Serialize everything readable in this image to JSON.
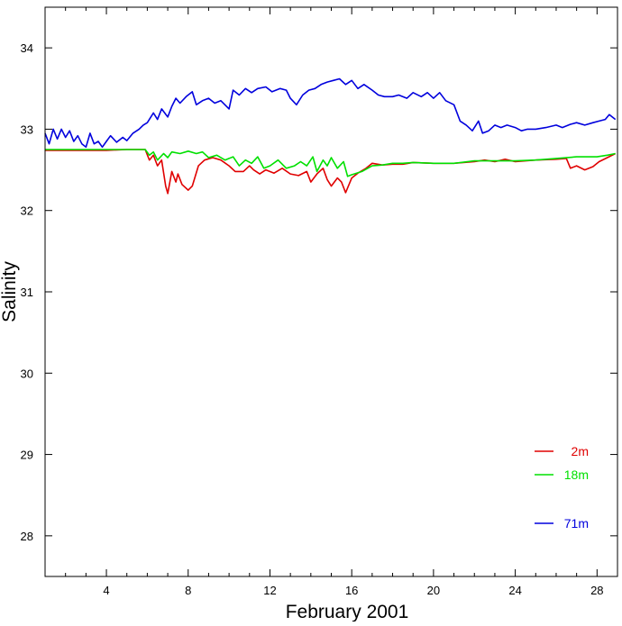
{
  "chart_data": {
    "type": "line",
    "title": "",
    "xlabel": "February 2001",
    "ylabel": "Salinity",
    "xlim": [
      1,
      29
    ],
    "ylim": [
      27.5,
      34.5
    ],
    "xticks": [
      4,
      8,
      12,
      16,
      20,
      24,
      28
    ],
    "xtick_labels": [
      "4",
      "8",
      "12",
      "16",
      "20",
      "24",
      "28"
    ],
    "x_minor_step": 1,
    "yticks": [
      28,
      29,
      30,
      31,
      32,
      33,
      34
    ],
    "ytick_labels": [
      "28",
      "29",
      "30",
      "31",
      "32",
      "33",
      "34"
    ],
    "grid": false,
    "legend_position": "bottom-right",
    "series": [
      {
        "name": "2m",
        "color": "#e00000",
        "points": [
          [
            1.0,
            32.74
          ],
          [
            2.0,
            32.74
          ],
          [
            3.0,
            32.74
          ],
          [
            4.0,
            32.74
          ],
          [
            5.0,
            32.75
          ],
          [
            5.9,
            32.75
          ],
          [
            6.1,
            32.62
          ],
          [
            6.3,
            32.68
          ],
          [
            6.5,
            32.55
          ],
          [
            6.7,
            32.62
          ],
          [
            6.9,
            32.3
          ],
          [
            7.0,
            32.21
          ],
          [
            7.2,
            32.48
          ],
          [
            7.4,
            32.35
          ],
          [
            7.5,
            32.45
          ],
          [
            7.7,
            32.32
          ],
          [
            8.0,
            32.25
          ],
          [
            8.2,
            32.3
          ],
          [
            8.5,
            32.55
          ],
          [
            8.8,
            32.62
          ],
          [
            9.2,
            32.65
          ],
          [
            9.6,
            32.62
          ],
          [
            10.0,
            32.55
          ],
          [
            10.3,
            32.48
          ],
          [
            10.7,
            32.48
          ],
          [
            11.0,
            32.55
          ],
          [
            11.2,
            32.5
          ],
          [
            11.5,
            32.45
          ],
          [
            11.8,
            32.5
          ],
          [
            12.2,
            32.46
          ],
          [
            12.6,
            32.52
          ],
          [
            13.0,
            32.45
          ],
          [
            13.4,
            32.43
          ],
          [
            13.8,
            32.48
          ],
          [
            14.0,
            32.35
          ],
          [
            14.3,
            32.45
          ],
          [
            14.6,
            32.52
          ],
          [
            14.8,
            32.38
          ],
          [
            15.0,
            32.3
          ],
          [
            15.3,
            32.4
          ],
          [
            15.5,
            32.35
          ],
          [
            15.7,
            32.22
          ],
          [
            16.0,
            32.4
          ],
          [
            16.3,
            32.46
          ],
          [
            16.7,
            32.52
          ],
          [
            17.0,
            32.58
          ],
          [
            17.5,
            32.56
          ],
          [
            18.0,
            32.57
          ],
          [
            18.5,
            32.57
          ],
          [
            19.0,
            32.59
          ],
          [
            20.0,
            32.58
          ],
          [
            21.0,
            32.58
          ],
          [
            22.0,
            32.6
          ],
          [
            22.5,
            32.62
          ],
          [
            23.0,
            32.6
          ],
          [
            23.5,
            32.63
          ],
          [
            24.0,
            32.6
          ],
          [
            25.0,
            32.62
          ],
          [
            26.0,
            32.63
          ],
          [
            26.5,
            32.64
          ],
          [
            26.7,
            32.52
          ],
          [
            27.0,
            32.55
          ],
          [
            27.4,
            32.5
          ],
          [
            27.8,
            32.54
          ],
          [
            28.1,
            32.6
          ],
          [
            28.5,
            32.65
          ],
          [
            28.9,
            32.7
          ]
        ]
      },
      {
        "name": "18m",
        "color": "#00e000",
        "points": [
          [
            1.0,
            32.75
          ],
          [
            2.0,
            32.75
          ],
          [
            3.0,
            32.75
          ],
          [
            4.0,
            32.75
          ],
          [
            5.0,
            32.75
          ],
          [
            5.9,
            32.75
          ],
          [
            6.1,
            32.68
          ],
          [
            6.3,
            32.72
          ],
          [
            6.5,
            32.62
          ],
          [
            6.8,
            32.7
          ],
          [
            7.0,
            32.65
          ],
          [
            7.2,
            32.72
          ],
          [
            7.6,
            32.7
          ],
          [
            8.0,
            32.73
          ],
          [
            8.4,
            32.7
          ],
          [
            8.7,
            32.72
          ],
          [
            9.0,
            32.65
          ],
          [
            9.4,
            32.68
          ],
          [
            9.8,
            32.62
          ],
          [
            10.2,
            32.66
          ],
          [
            10.5,
            32.55
          ],
          [
            10.8,
            32.62
          ],
          [
            11.1,
            32.58
          ],
          [
            11.4,
            32.66
          ],
          [
            11.7,
            32.52
          ],
          [
            12.0,
            32.55
          ],
          [
            12.4,
            32.62
          ],
          [
            12.8,
            32.52
          ],
          [
            13.2,
            32.55
          ],
          [
            13.5,
            32.6
          ],
          [
            13.8,
            32.55
          ],
          [
            14.1,
            32.66
          ],
          [
            14.3,
            32.48
          ],
          [
            14.6,
            32.62
          ],
          [
            14.8,
            32.55
          ],
          [
            15.0,
            32.65
          ],
          [
            15.3,
            32.52
          ],
          [
            15.6,
            32.6
          ],
          [
            15.8,
            32.42
          ],
          [
            16.0,
            32.44
          ],
          [
            16.5,
            32.48
          ],
          [
            17.0,
            32.55
          ],
          [
            17.5,
            32.56
          ],
          [
            18.0,
            32.58
          ],
          [
            18.5,
            32.58
          ],
          [
            19.0,
            32.59
          ],
          [
            20.0,
            32.58
          ],
          [
            21.0,
            32.58
          ],
          [
            22.0,
            32.61
          ],
          [
            23.0,
            32.61
          ],
          [
            24.0,
            32.61
          ],
          [
            25.0,
            32.62
          ],
          [
            26.0,
            32.64
          ],
          [
            27.0,
            32.66
          ],
          [
            27.5,
            32.66
          ],
          [
            28.0,
            32.66
          ],
          [
            28.5,
            32.68
          ],
          [
            28.9,
            32.7
          ]
        ]
      },
      {
        "name": "71m",
        "color": "#0000dd",
        "points": [
          [
            1.0,
            32.95
          ],
          [
            1.2,
            32.82
          ],
          [
            1.4,
            33.0
          ],
          [
            1.6,
            32.88
          ],
          [
            1.8,
            33.0
          ],
          [
            2.0,
            32.9
          ],
          [
            2.2,
            32.98
          ],
          [
            2.4,
            32.85
          ],
          [
            2.6,
            32.92
          ],
          [
            2.8,
            32.82
          ],
          [
            3.0,
            32.78
          ],
          [
            3.2,
            32.95
          ],
          [
            3.4,
            32.82
          ],
          [
            3.6,
            32.85
          ],
          [
            3.8,
            32.78
          ],
          [
            4.0,
            32.85
          ],
          [
            4.2,
            32.92
          ],
          [
            4.5,
            32.84
          ],
          [
            4.8,
            32.9
          ],
          [
            5.0,
            32.86
          ],
          [
            5.3,
            32.95
          ],
          [
            5.6,
            33.0
          ],
          [
            5.8,
            33.05
          ],
          [
            6.0,
            33.08
          ],
          [
            6.3,
            33.2
          ],
          [
            6.5,
            33.12
          ],
          [
            6.7,
            33.25
          ],
          [
            7.0,
            33.15
          ],
          [
            7.2,
            33.28
          ],
          [
            7.4,
            33.38
          ],
          [
            7.6,
            33.32
          ],
          [
            7.9,
            33.4
          ],
          [
            8.2,
            33.46
          ],
          [
            8.4,
            33.3
          ],
          [
            8.7,
            33.35
          ],
          [
            9.0,
            33.38
          ],
          [
            9.3,
            33.32
          ],
          [
            9.6,
            33.35
          ],
          [
            10.0,
            33.25
          ],
          [
            10.2,
            33.48
          ],
          [
            10.5,
            33.42
          ],
          [
            10.8,
            33.5
          ],
          [
            11.1,
            33.45
          ],
          [
            11.4,
            33.5
          ],
          [
            11.8,
            33.52
          ],
          [
            12.1,
            33.46
          ],
          [
            12.5,
            33.5
          ],
          [
            12.8,
            33.48
          ],
          [
            13.0,
            33.38
          ],
          [
            13.3,
            33.3
          ],
          [
            13.6,
            33.42
          ],
          [
            13.9,
            33.48
          ],
          [
            14.2,
            33.5
          ],
          [
            14.5,
            33.55
          ],
          [
            14.8,
            33.58
          ],
          [
            15.1,
            33.6
          ],
          [
            15.4,
            33.62
          ],
          [
            15.7,
            33.55
          ],
          [
            16.0,
            33.6
          ],
          [
            16.3,
            33.5
          ],
          [
            16.6,
            33.55
          ],
          [
            17.0,
            33.48
          ],
          [
            17.3,
            33.42
          ],
          [
            17.6,
            33.4
          ],
          [
            18.0,
            33.4
          ],
          [
            18.3,
            33.42
          ],
          [
            18.7,
            33.38
          ],
          [
            19.0,
            33.45
          ],
          [
            19.4,
            33.4
          ],
          [
            19.7,
            33.45
          ],
          [
            20.0,
            33.38
          ],
          [
            20.3,
            33.45
          ],
          [
            20.6,
            33.35
          ],
          [
            21.0,
            33.3
          ],
          [
            21.3,
            33.1
          ],
          [
            21.6,
            33.05
          ],
          [
            21.9,
            32.98
          ],
          [
            22.2,
            33.1
          ],
          [
            22.4,
            32.95
          ],
          [
            22.7,
            32.98
          ],
          [
            23.0,
            33.05
          ],
          [
            23.3,
            33.02
          ],
          [
            23.6,
            33.05
          ],
          [
            24.0,
            33.02
          ],
          [
            24.3,
            32.98
          ],
          [
            24.6,
            33.0
          ],
          [
            25.0,
            33.0
          ],
          [
            25.5,
            33.02
          ],
          [
            26.0,
            33.05
          ],
          [
            26.3,
            33.02
          ],
          [
            26.7,
            33.06
          ],
          [
            27.0,
            33.08
          ],
          [
            27.4,
            33.05
          ],
          [
            27.8,
            33.08
          ],
          [
            28.1,
            33.1
          ],
          [
            28.4,
            33.12
          ],
          [
            28.6,
            33.18
          ],
          [
            28.9,
            33.12
          ]
        ]
      }
    ]
  }
}
